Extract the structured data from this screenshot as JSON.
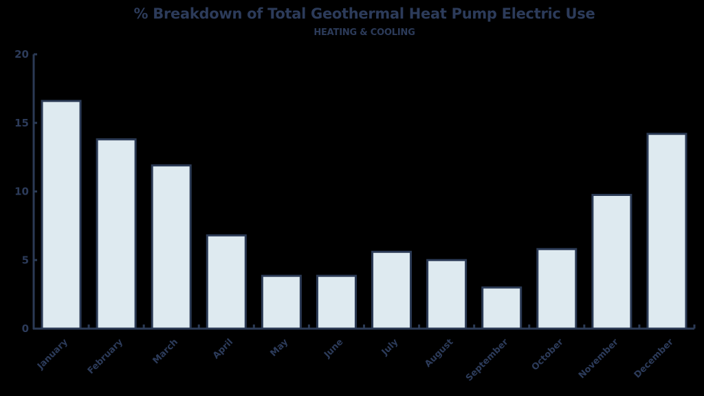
{
  "chart_data": {
    "type": "bar",
    "title": "% Breakdown of Total Geothermal Heat Pump Electric Use",
    "subtitle": "HEATING & COOLING",
    "xlabel": "",
    "ylabel": "",
    "categories": [
      "January",
      "February",
      "March",
      "April",
      "May",
      "June",
      "July",
      "August",
      "September",
      "October",
      "November",
      "December"
    ],
    "values": [
      16.6,
      13.8,
      11.9,
      6.8,
      3.85,
      3.85,
      5.6,
      5.0,
      3.0,
      5.8,
      9.75,
      14.2
    ],
    "ylim": [
      0,
      20
    ],
    "yticks": [
      0,
      5,
      10,
      15,
      20
    ],
    "grid": false,
    "legend": null,
    "colors": {
      "bar_fill": "#deeaf0",
      "bar_stroke": "#2b3a55",
      "axis": "#2b3a55",
      "text": "#2c3b5a",
      "background": "#000000"
    }
  }
}
